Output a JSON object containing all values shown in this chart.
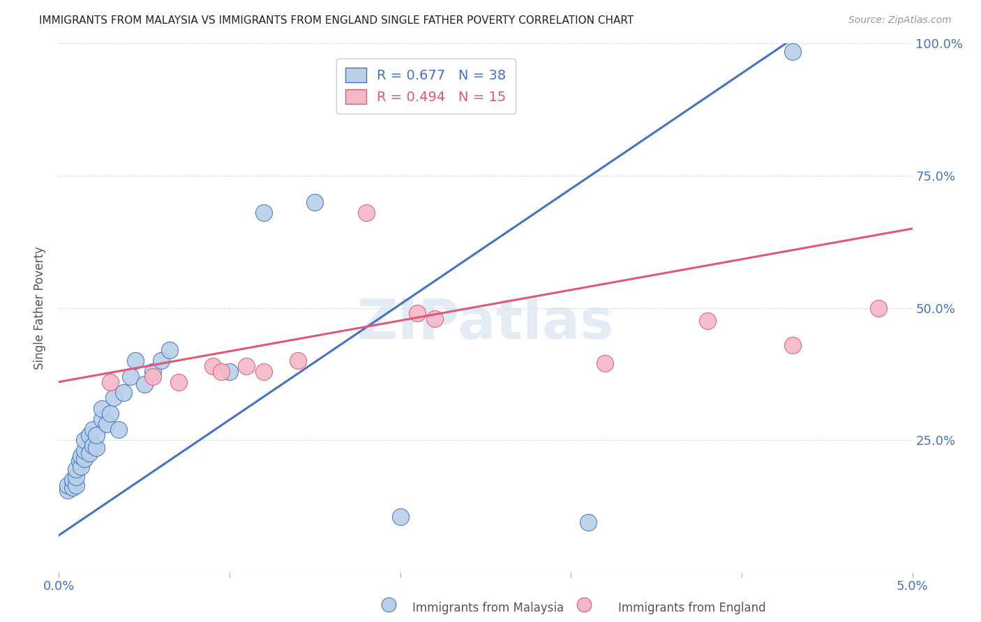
{
  "title": "IMMIGRANTS FROM MALAYSIA VS IMMIGRANTS FROM ENGLAND SINGLE FATHER POVERTY CORRELATION CHART",
  "source": "Source: ZipAtlas.com",
  "ylabel": "Single Father Poverty",
  "x_min": 0.0,
  "x_max": 0.05,
  "y_min": 0.0,
  "y_max": 1.0,
  "malaysia_r": "0.677",
  "malaysia_n": "38",
  "england_r": "0.494",
  "england_n": "15",
  "malaysia_color": "#b8d0e8",
  "malaysia_line_color": "#4472c4",
  "england_color": "#f5b8c8",
  "england_line_color": "#e05878",
  "legend_label_malaysia": "Immigrants from Malaysia",
  "legend_label_england": "Immigrants from England",
  "malaysia_x": [
    0.0005,
    0.0005,
    0.0008,
    0.0008,
    0.001,
    0.001,
    0.001,
    0.0012,
    0.0013,
    0.0013,
    0.0015,
    0.0015,
    0.0015,
    0.0018,
    0.0018,
    0.002,
    0.002,
    0.0022,
    0.0022,
    0.0025,
    0.0025,
    0.0028,
    0.003,
    0.0032,
    0.0035,
    0.0038,
    0.0042,
    0.0045,
    0.005,
    0.0055,
    0.006,
    0.0065,
    0.01,
    0.012,
    0.015,
    0.02,
    0.031,
    0.043
  ],
  "malaysia_y": [
    0.155,
    0.165,
    0.16,
    0.175,
    0.165,
    0.18,
    0.195,
    0.21,
    0.2,
    0.22,
    0.215,
    0.23,
    0.25,
    0.225,
    0.26,
    0.24,
    0.27,
    0.235,
    0.26,
    0.29,
    0.31,
    0.28,
    0.3,
    0.33,
    0.27,
    0.34,
    0.37,
    0.4,
    0.355,
    0.38,
    0.4,
    0.42,
    0.38,
    0.68,
    0.7,
    0.105,
    0.095,
    0.985
  ],
  "england_x": [
    0.003,
    0.0055,
    0.007,
    0.009,
    0.0095,
    0.011,
    0.012,
    0.014,
    0.018,
    0.021,
    0.022,
    0.032,
    0.038,
    0.043,
    0.048
  ],
  "england_y": [
    0.36,
    0.37,
    0.36,
    0.39,
    0.38,
    0.39,
    0.38,
    0.4,
    0.68,
    0.49,
    0.48,
    0.395,
    0.475,
    0.43,
    0.5
  ],
  "blue_line_x0": 0.0,
  "blue_line_y0": 0.07,
  "blue_line_x1": 0.0435,
  "blue_line_y1": 1.02,
  "pink_line_x0": 0.0,
  "pink_line_y0": 0.36,
  "pink_line_x1": 0.05,
  "pink_line_y1": 0.65,
  "watermark": "ZIPatlas",
  "grid_color": "#dddddd",
  "title_color": "#222222",
  "tick_color": "#4472c4",
  "background_color": "#ffffff"
}
